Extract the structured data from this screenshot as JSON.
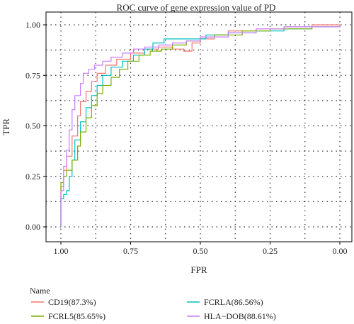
{
  "chart_data": {
    "type": "line",
    "title": "ROC curve of gene expression value of PD",
    "xlabel": "FPR",
    "ylabel": "TPR",
    "x_reversed": true,
    "xlim": [
      1.0,
      0.0
    ],
    "ylim": [
      0.0,
      1.0
    ],
    "x_ticks": [
      1.0,
      0.75,
      0.5,
      0.25,
      0.0
    ],
    "x_tick_labels": [
      "1.00",
      "0.75",
      "0.50",
      "0.25",
      "0.00"
    ],
    "y_ticks": [
      0.0,
      0.25,
      0.5,
      0.75,
      1.0
    ],
    "y_tick_labels": [
      "0.00",
      "0.25",
      "0.50",
      "0.75",
      "1.00"
    ],
    "grid": true,
    "legend_title": "Name",
    "legend_position": "bottom",
    "series": [
      {
        "name": "CD19(87.3%)",
        "color": "#F8766D",
        "points": [
          [
            1.0,
            0.0
          ],
          [
            1.0,
            0.2
          ],
          [
            0.99,
            0.28
          ],
          [
            0.98,
            0.35
          ],
          [
            0.96,
            0.45
          ],
          [
            0.94,
            0.55
          ],
          [
            0.93,
            0.62
          ],
          [
            0.91,
            0.67
          ],
          [
            0.89,
            0.72
          ],
          [
            0.87,
            0.76
          ],
          [
            0.84,
            0.8
          ],
          [
            0.8,
            0.83
          ],
          [
            0.75,
            0.86
          ],
          [
            0.7,
            0.88
          ],
          [
            0.65,
            0.89
          ],
          [
            0.6,
            0.88
          ],
          [
            0.56,
            0.87
          ],
          [
            0.53,
            0.91
          ],
          [
            0.5,
            0.93
          ],
          [
            0.45,
            0.95
          ],
          [
            0.4,
            0.97
          ],
          [
            0.3,
            0.98
          ],
          [
            0.2,
            0.99
          ],
          [
            0.1,
            1.0
          ],
          [
            0.0,
            1.0
          ]
        ]
      },
      {
        "name": "FCRLA(86.56%)",
        "color": "#00BFC4",
        "points": [
          [
            1.0,
            0.0
          ],
          [
            1.0,
            0.14
          ],
          [
            0.99,
            0.16
          ],
          [
            0.98,
            0.18
          ],
          [
            0.97,
            0.25
          ],
          [
            0.96,
            0.33
          ],
          [
            0.95,
            0.43
          ],
          [
            0.93,
            0.52
          ],
          [
            0.91,
            0.59
          ],
          [
            0.89,
            0.65
          ],
          [
            0.87,
            0.7
          ],
          [
            0.85,
            0.75
          ],
          [
            0.82,
            0.79
          ],
          [
            0.78,
            0.82
          ],
          [
            0.74,
            0.85
          ],
          [
            0.7,
            0.88
          ],
          [
            0.67,
            0.91
          ],
          [
            0.63,
            0.93
          ],
          [
            0.58,
            0.93
          ],
          [
            0.52,
            0.93
          ],
          [
            0.48,
            0.95
          ],
          [
            0.4,
            0.96
          ],
          [
            0.3,
            0.97
          ],
          [
            0.2,
            0.98
          ],
          [
            0.1,
            0.99
          ],
          [
            0.0,
            1.0
          ]
        ]
      },
      {
        "name": "FCRL5(85.65%)",
        "color": "#7CAE00",
        "points": [
          [
            1.0,
            0.0
          ],
          [
            1.0,
            0.22
          ],
          [
            0.99,
            0.25
          ],
          [
            0.98,
            0.28
          ],
          [
            0.96,
            0.33
          ],
          [
            0.94,
            0.4
          ],
          [
            0.93,
            0.47
          ],
          [
            0.91,
            0.54
          ],
          [
            0.89,
            0.6
          ],
          [
            0.87,
            0.66
          ],
          [
            0.85,
            0.7
          ],
          [
            0.82,
            0.74
          ],
          [
            0.79,
            0.78
          ],
          [
            0.76,
            0.82
          ],
          [
            0.72,
            0.85
          ],
          [
            0.68,
            0.87
          ],
          [
            0.64,
            0.88
          ],
          [
            0.6,
            0.9
          ],
          [
            0.55,
            0.92
          ],
          [
            0.5,
            0.94
          ],
          [
            0.45,
            0.95
          ],
          [
            0.35,
            0.97
          ],
          [
            0.25,
            0.98
          ],
          [
            0.1,
            0.99
          ],
          [
            0.0,
            1.0
          ]
        ]
      },
      {
        "name": "HLA−DOB(88.61%)",
        "color": "#C77CFF",
        "points": [
          [
            1.0,
            0.0
          ],
          [
            1.0,
            0.18
          ],
          [
            0.99,
            0.3
          ],
          [
            0.98,
            0.38
          ],
          [
            0.97,
            0.48
          ],
          [
            0.96,
            0.58
          ],
          [
            0.95,
            0.65
          ],
          [
            0.93,
            0.71
          ],
          [
            0.92,
            0.76
          ],
          [
            0.9,
            0.78
          ],
          [
            0.88,
            0.8
          ],
          [
            0.85,
            0.82
          ],
          [
            0.82,
            0.84
          ],
          [
            0.78,
            0.86
          ],
          [
            0.74,
            0.88
          ],
          [
            0.7,
            0.89
          ],
          [
            0.65,
            0.9
          ],
          [
            0.6,
            0.91
          ],
          [
            0.55,
            0.92
          ],
          [
            0.5,
            0.94
          ],
          [
            0.4,
            0.96
          ],
          [
            0.3,
            0.98
          ],
          [
            0.2,
            0.99
          ],
          [
            0.1,
            0.99
          ],
          [
            0.0,
            1.0
          ]
        ]
      }
    ]
  },
  "legend_layout": [
    {
      "series": 0,
      "col": 0,
      "row": 0
    },
    {
      "series": 1,
      "col": 1,
      "row": 0
    },
    {
      "series": 2,
      "col": 0,
      "row": 1
    },
    {
      "series": 3,
      "col": 1,
      "row": 1
    }
  ]
}
